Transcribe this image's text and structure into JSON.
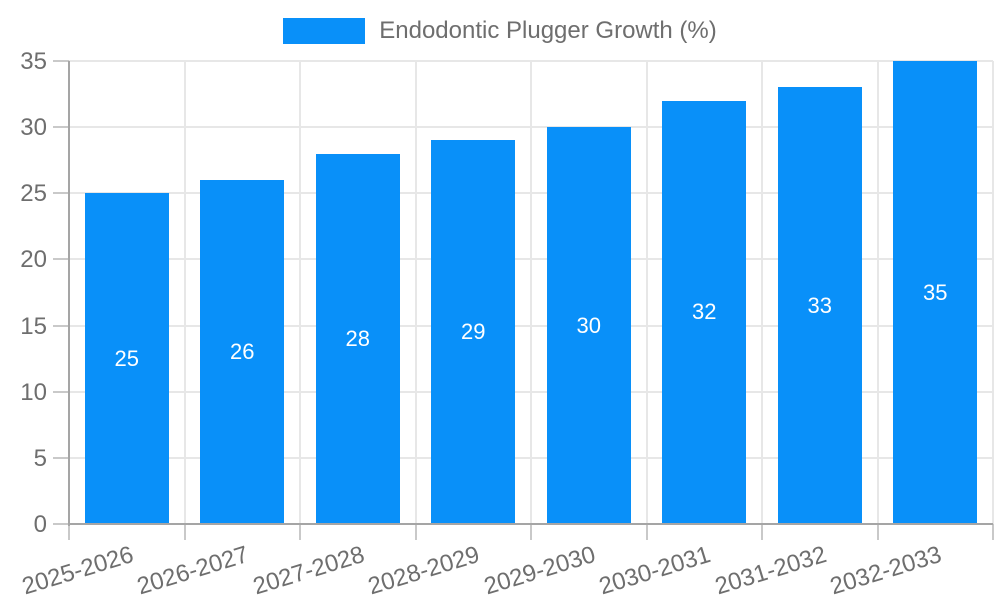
{
  "legend": {
    "label": "Endodontic Plugger Growth (%)"
  },
  "chart_data": {
    "type": "bar",
    "title": "",
    "xlabel": "",
    "ylabel": "",
    "series_name": "Endodontic Plugger Growth (%)",
    "categories": [
      "2025-2026",
      "2026-2027",
      "2027-2028",
      "2028-2029",
      "2029-2030",
      "2030-2031",
      "2031-2032",
      "2032-2033"
    ],
    "values": [
      25,
      26,
      28,
      29,
      30,
      32,
      33,
      35
    ],
    "value_labels": [
      "25",
      "26",
      "28",
      "29",
      "30",
      "32",
      "33",
      "35"
    ],
    "ylim": [
      0,
      35
    ],
    "yticks": [
      0,
      5,
      10,
      15,
      20,
      25,
      30,
      35
    ],
    "grid": true,
    "legend_position": "top-center",
    "bar_color": "#0990f9",
    "value_label_color": "#ffffff",
    "grid_color": "#e7e7e7",
    "axis_color": "#a5a5a5",
    "tick_color": "#c9c9c9",
    "text_color": "#6e6e6e",
    "background_color": "#ffffff"
  }
}
